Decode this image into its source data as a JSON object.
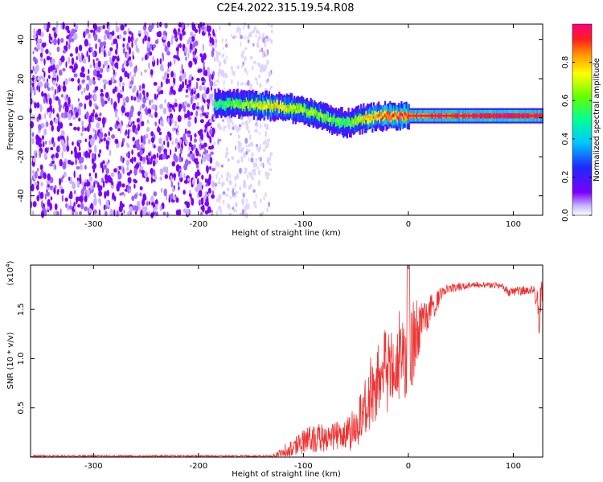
{
  "title": "C2E4.2022.315.19.54.R08",
  "colors": {
    "snr_line": "#ee3333",
    "scatter_strong": "#7a00ff",
    "scatter_faint": "#c9b0ff"
  },
  "chart_data": [
    {
      "type": "heatmap",
      "xlabel": "Height of straight line (km)",
      "ylabel": "Frequency (Hz)",
      "xlim": [
        -360,
        128
      ],
      "ylim": [
        -50,
        48
      ],
      "xticks": [
        "-300",
        "-200",
        "-100",
        "0",
        "100"
      ],
      "yticks": [
        "-40",
        "-20",
        "0",
        "20",
        "40"
      ],
      "colorbar": {
        "label": "Normalized spectral amplitude",
        "range": [
          0.0,
          1.0
        ],
        "ticks": [
          "0.0",
          "0.2",
          "0.4",
          "0.6",
          "0.8"
        ],
        "colormap": "rainbow (violet to red)"
      },
      "signal_track": [
        {
          "x": -185,
          "freq": 7,
          "amp": 0.45
        },
        {
          "x": -160,
          "freq": 7,
          "amp": 0.55
        },
        {
          "x": -130,
          "freq": 6,
          "amp": 0.7
        },
        {
          "x": -100,
          "freq": 4,
          "amp": 0.6
        },
        {
          "x": -80,
          "freq": 0,
          "amp": 0.55
        },
        {
          "x": -60,
          "freq": -3,
          "amp": 0.5
        },
        {
          "x": -40,
          "freq": 0,
          "amp": 0.7
        },
        {
          "x": -20,
          "freq": 1,
          "amp": 0.8
        },
        {
          "x": 0,
          "freq": 1,
          "amp": 0.85
        },
        {
          "x": 50,
          "freq": 1,
          "amp": 0.9
        },
        {
          "x": 100,
          "freq": 1,
          "amp": 0.95
        },
        {
          "x": 128,
          "freq": 1,
          "amp": 0.9
        }
      ]
    },
    {
      "type": "line",
      "xlabel": "Height of straight line (km)",
      "ylabel": "SNR (10 * v/v)",
      "yscale_label": "(x10",
      "yscale_exp": "4",
      "yscale_close": ")",
      "xlim": [
        -360,
        128
      ],
      "ylim": [
        0.0,
        1.95
      ],
      "xticks": [
        "-300",
        "-200",
        "-100",
        "0",
        "100"
      ],
      "yticks": [
        "0.5",
        "1.0",
        "1.5"
      ],
      "envelope": [
        {
          "x": -360,
          "y": 0.01,
          "spread": 0.01
        },
        {
          "x": -130,
          "y": 0.01,
          "spread": 0.01
        },
        {
          "x": -110,
          "y": 0.1,
          "spread": 0.1
        },
        {
          "x": -90,
          "y": 0.2,
          "spread": 0.15
        },
        {
          "x": -70,
          "y": 0.2,
          "spread": 0.15
        },
        {
          "x": -55,
          "y": 0.25,
          "spread": 0.2
        },
        {
          "x": -40,
          "y": 0.5,
          "spread": 0.35
        },
        {
          "x": -30,
          "y": 0.8,
          "spread": 0.45
        },
        {
          "x": -15,
          "y": 1.0,
          "spread": 0.5
        },
        {
          "x": 0,
          "y": 1.1,
          "spread": 0.6
        },
        {
          "x": 15,
          "y": 1.4,
          "spread": 0.2
        },
        {
          "x": 35,
          "y": 1.7,
          "spread": 0.05
        },
        {
          "x": 60,
          "y": 1.75,
          "spread": 0.03
        },
        {
          "x": 90,
          "y": 1.74,
          "spread": 0.03
        },
        {
          "x": 95,
          "y": 1.68,
          "spread": 0.05
        },
        {
          "x": 120,
          "y": 1.7,
          "spread": 0.04
        },
        {
          "x": 125,
          "y": 1.45,
          "spread": 0.25
        },
        {
          "x": 128,
          "y": 1.75,
          "spread": 0.1
        }
      ]
    }
  ]
}
